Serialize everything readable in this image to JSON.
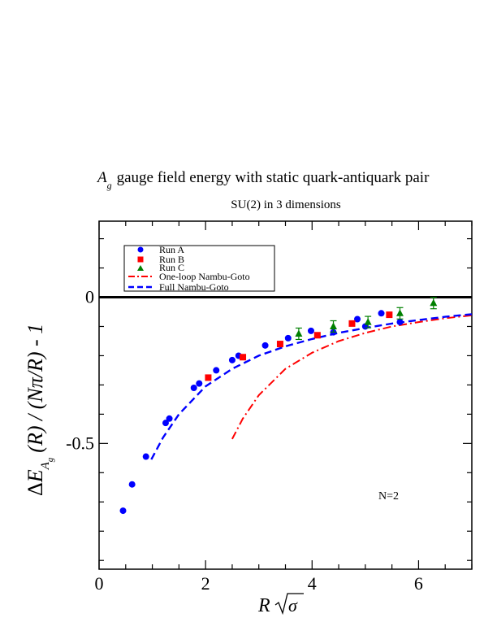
{
  "chart_data": {
    "type": "scatter",
    "title_symbol": "A",
    "title_subscript": "g",
    "title_rest": "gauge field energy with static quark-antiquark pair",
    "subtitle": "SU(2) in 3 dimensions",
    "xlabel_var": "R",
    "xlabel_sym": "σ",
    "ylabel_delta": "Δ",
    "ylabel_E": "E",
    "ylabel_subA": "A",
    "ylabel_subg": "g",
    "ylabel_mid": "(R) / (Nπ/R) - 1",
    "xlim": [
      0,
      7
    ],
    "ylim": [
      -0.93,
      0.26
    ],
    "x_ticks": [
      0,
      2,
      4,
      6
    ],
    "x_tick_labels": [
      "0",
      "2",
      "4",
      "6"
    ],
    "y_ticks": [
      0,
      -0.5
    ],
    "y_tick_labels": [
      "0",
      "-0.5"
    ],
    "annotation": "N=2",
    "reference_line_y": 0,
    "colors": {
      "run_a": "#0000ff",
      "run_b": "#ff0000",
      "run_c": "#008000",
      "one_loop": "#ff0000",
      "full": "#0000ff"
    },
    "series": [
      {
        "name": "Run A",
        "marker": "circle",
        "color": "#0000ff",
        "points": [
          [
            0.45,
            -0.73
          ],
          [
            0.62,
            -0.64
          ],
          [
            0.88,
            -0.545
          ],
          [
            1.25,
            -0.43
          ],
          [
            1.32,
            -0.415
          ],
          [
            1.78,
            -0.31
          ],
          [
            1.88,
            -0.295
          ],
          [
            2.2,
            -0.25
          ],
          [
            2.5,
            -0.215
          ],
          [
            2.62,
            -0.2
          ],
          [
            3.12,
            -0.165
          ],
          [
            3.55,
            -0.14
          ],
          [
            3.98,
            -0.115
          ],
          [
            4.4,
            -0.12
          ],
          [
            4.85,
            -0.075
          ],
          [
            5.0,
            -0.1
          ],
          [
            5.3,
            -0.055
          ],
          [
            5.65,
            -0.085
          ]
        ]
      },
      {
        "name": "Run B",
        "marker": "square",
        "color": "#ff0000",
        "points": [
          [
            2.05,
            -0.275
          ],
          [
            2.7,
            -0.205
          ],
          [
            3.4,
            -0.16
          ],
          [
            4.1,
            -0.13
          ],
          [
            4.75,
            -0.09
          ],
          [
            5.45,
            -0.06
          ]
        ]
      },
      {
        "name": "Run C",
        "marker": "triangle",
        "color": "#008000",
        "points": [
          [
            3.75,
            -0.125
          ],
          [
            4.4,
            -0.1
          ],
          [
            5.05,
            -0.085
          ],
          [
            5.65,
            -0.055
          ],
          [
            6.28,
            -0.02
          ]
        ]
      },
      {
        "name": "One-loop Nambu-Goto",
        "style": "dash-dot",
        "color": "#ff0000",
        "points": [
          [
            2.5,
            -0.485
          ],
          [
            2.7,
            -0.415
          ],
          [
            3.0,
            -0.335
          ],
          [
            3.5,
            -0.245
          ],
          [
            4.0,
            -0.19
          ],
          [
            4.5,
            -0.15
          ],
          [
            5.0,
            -0.122
          ],
          [
            5.5,
            -0.1
          ],
          [
            6.0,
            -0.085
          ],
          [
            6.5,
            -0.072
          ],
          [
            7.0,
            -0.062
          ]
        ]
      },
      {
        "name": "Full Nambu-Goto",
        "style": "dashed",
        "color": "#0000ff",
        "points": [
          [
            0.98,
            -0.555
          ],
          [
            1.2,
            -0.48
          ],
          [
            1.5,
            -0.4
          ],
          [
            2.0,
            -0.305
          ],
          [
            2.5,
            -0.245
          ],
          [
            3.0,
            -0.2
          ],
          [
            3.5,
            -0.168
          ],
          [
            4.0,
            -0.143
          ],
          [
            4.5,
            -0.122
          ],
          [
            5.0,
            -0.105
          ],
          [
            5.5,
            -0.09
          ],
          [
            6.0,
            -0.078
          ],
          [
            6.5,
            -0.067
          ],
          [
            7.0,
            -0.058
          ]
        ]
      }
    ],
    "legend": {
      "placement": "top-left",
      "entries": [
        "Run A",
        "Run B",
        "Run C",
        "One-loop Nambu-Goto",
        "Full Nambu-Goto"
      ]
    }
  }
}
